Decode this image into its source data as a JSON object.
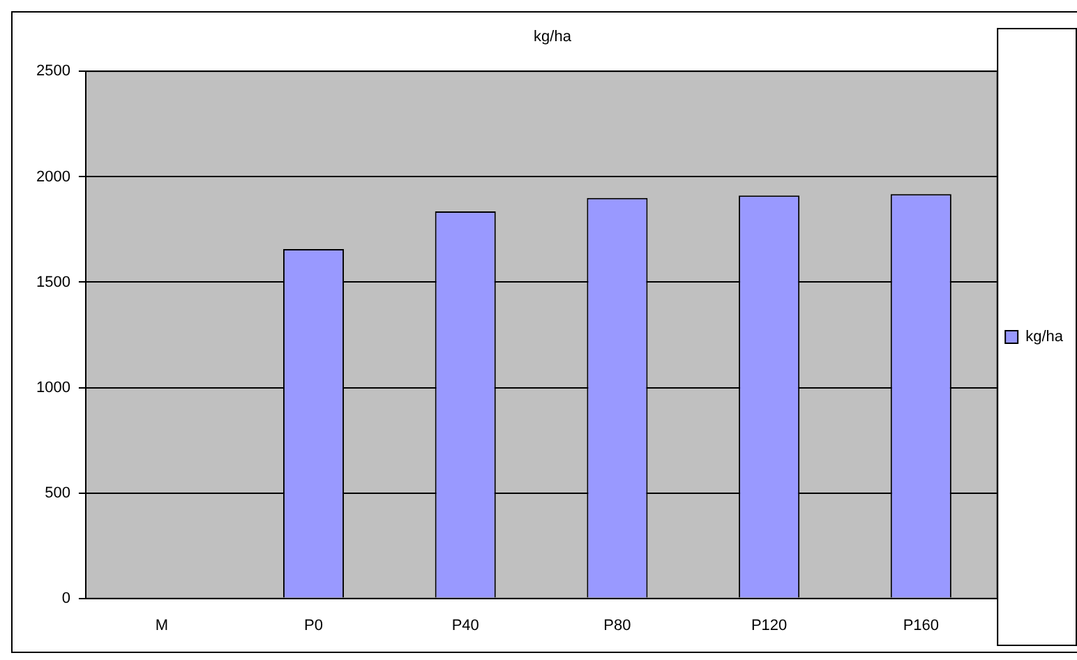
{
  "chart_data": {
    "type": "bar",
    "title": "kg/ha",
    "categories": [
      "M",
      "P0",
      "P40",
      "P80",
      "P120",
      "P160"
    ],
    "series": [
      {
        "name": "kg/ha",
        "color": "#9999ff",
        "values": [
          null,
          1657,
          1836,
          1900,
          1911,
          1918
        ]
      }
    ],
    "ylim": [
      0,
      2500
    ],
    "yticks": [
      0,
      500,
      1000,
      1500,
      2000,
      2500
    ],
    "grid": "y",
    "legend": "right"
  }
}
